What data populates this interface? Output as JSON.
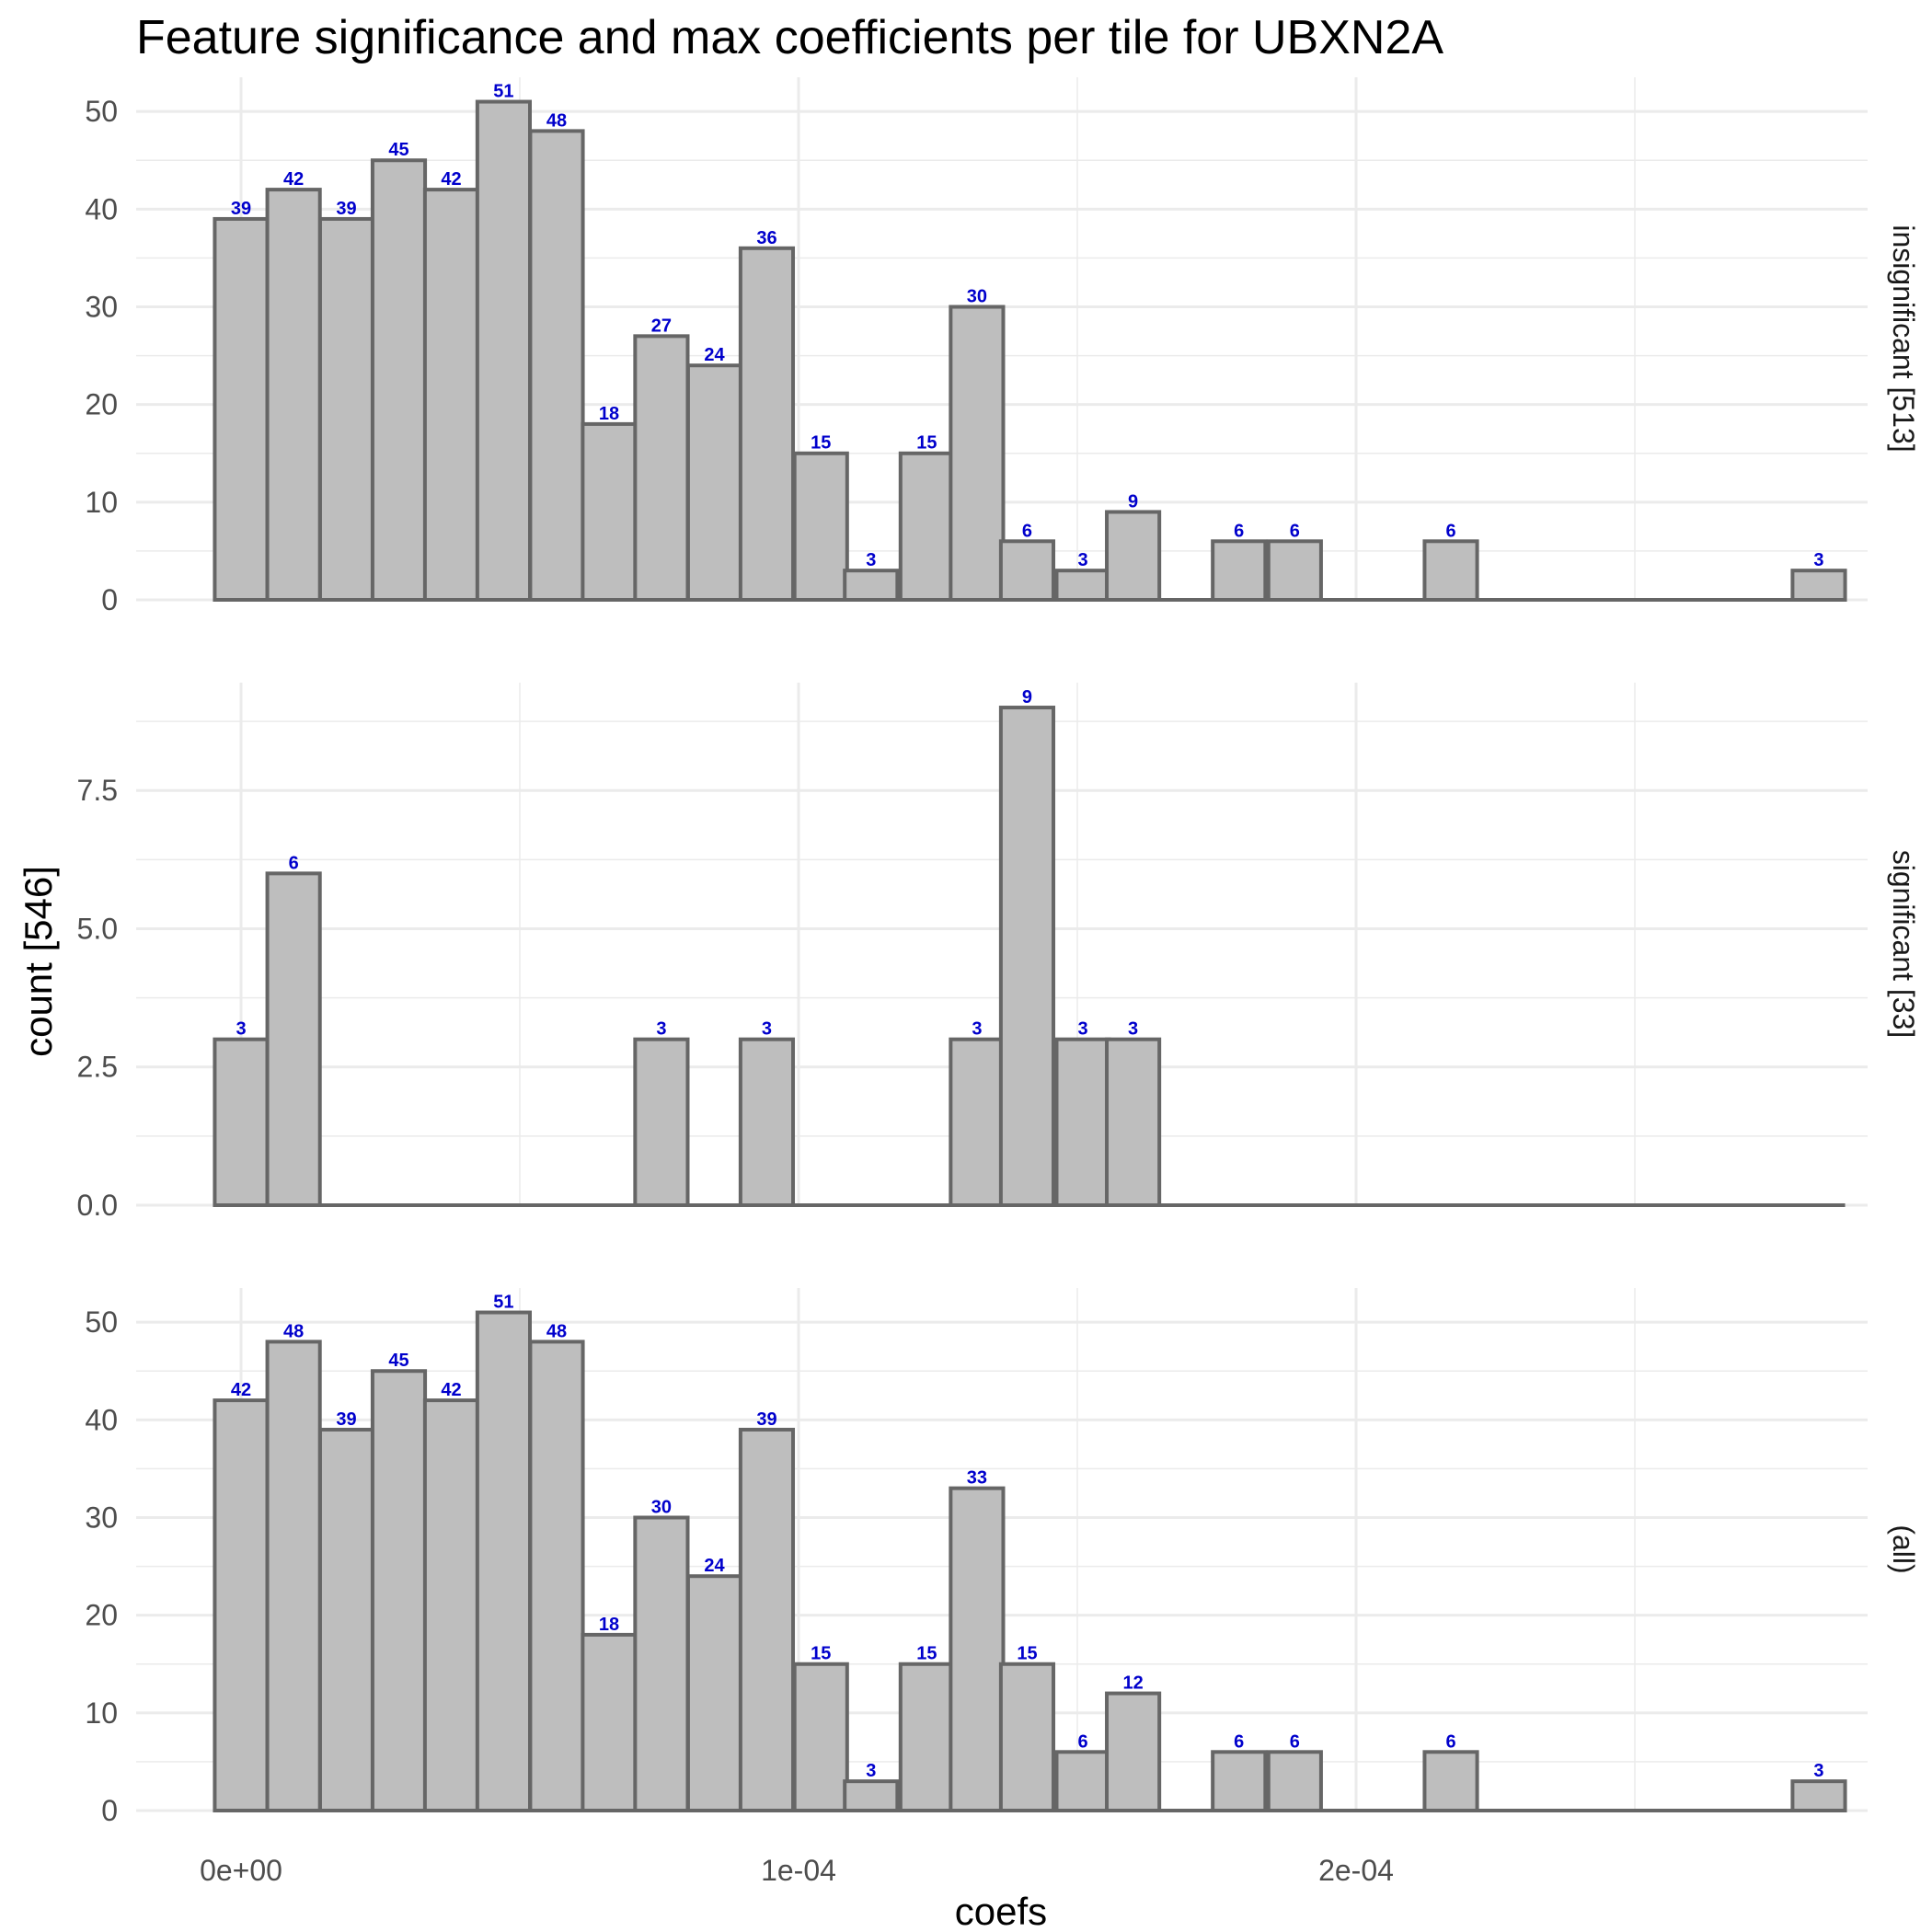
{
  "title": "Feature significance and max coefficients per tile for UBXN2A",
  "chart_data": {
    "type": "bar",
    "title": "Feature significance and max coefficients per tile for UBXN2A",
    "xlabel": "coefs",
    "ylabel": "count [546]",
    "x_ticks": [
      "0e+00",
      "1e-04",
      "2e-04"
    ],
    "x_tick_values": [
      0,
      0.0001,
      0.0002
    ],
    "bin_centers": [
      0,
      9.43e-06,
      1.89e-05,
      2.83e-05,
      3.77e-05,
      4.71e-05,
      5.66e-05,
      6.6e-05,
      7.54e-05,
      8.49e-05,
      9.43e-05,
      0.000104,
      0.000113,
      0.000123,
      0.000132,
      0.000141,
      0.000151,
      0.00016,
      0.00017,
      0.000179,
      0.000189,
      0.000198,
      0.000207,
      0.000217,
      0.000226,
      0.000236,
      0.000245,
      0.000255,
      0.000264,
      0.000273,
      0.000283
    ],
    "bin_width": 9.43e-06,
    "grid": true,
    "panels": [
      {
        "strip": "insignificant [513]",
        "ylim": [
          0,
          53.5
        ],
        "y_ticks": [
          "0",
          "10",
          "20",
          "30",
          "40",
          "50"
        ],
        "y_tick_values": [
          0,
          10,
          20,
          30,
          40,
          50
        ],
        "values": [
          39,
          42,
          39,
          45,
          42,
          51,
          48,
          18,
          27,
          24,
          36,
          15,
          3,
          15,
          30,
          6,
          3,
          9,
          0,
          6,
          6,
          0,
          0,
          6,
          0,
          0,
          0,
          0,
          0,
          0,
          3
        ]
      },
      {
        "strip": "significant [33]",
        "ylim": [
          0,
          9.45
        ],
        "y_ticks": [
          "0.0",
          "2.5",
          "5.0",
          "7.5"
        ],
        "y_tick_values": [
          0,
          2.5,
          5,
          7.5
        ],
        "values": [
          3,
          6,
          0,
          0,
          0,
          0,
          0,
          0,
          3,
          0,
          3,
          0,
          0,
          0,
          3,
          9,
          3,
          3,
          0,
          0,
          0,
          0,
          0,
          0,
          0,
          0,
          0,
          0,
          0,
          0,
          0
        ]
      },
      {
        "strip": "(all)",
        "ylim": [
          0,
          53.5
        ],
        "y_ticks": [
          "0",
          "10",
          "20",
          "30",
          "40",
          "50"
        ],
        "y_tick_values": [
          0,
          10,
          20,
          30,
          40,
          50
        ],
        "values": [
          42,
          48,
          39,
          45,
          42,
          51,
          48,
          18,
          30,
          24,
          39,
          15,
          3,
          15,
          33,
          15,
          6,
          12,
          0,
          6,
          6,
          0,
          0,
          6,
          0,
          0,
          0,
          0,
          0,
          0,
          3
        ]
      }
    ]
  }
}
